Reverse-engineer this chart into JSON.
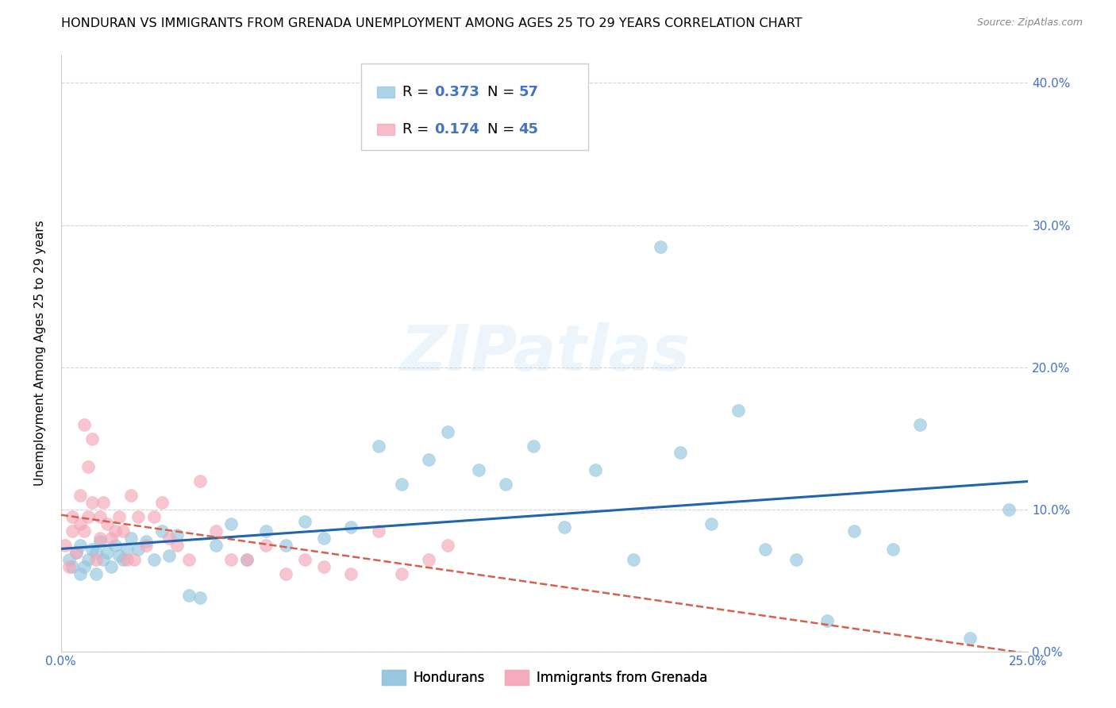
{
  "title": "HONDURAN VS IMMIGRANTS FROM GRENADA UNEMPLOYMENT AMONG AGES 25 TO 29 YEARS CORRELATION CHART",
  "source": "Source: ZipAtlas.com",
  "ylabel": "Unemployment Among Ages 25 to 29 years",
  "xlim": [
    0.0,
    0.25
  ],
  "ylim": [
    0.0,
    0.42
  ],
  "honduran_R": 0.373,
  "honduran_N": 57,
  "grenada_R": 0.174,
  "grenada_N": 45,
  "honduran_color": "#92c5de",
  "grenada_color": "#f4a6b8",
  "trendline_blue": "#2166ac",
  "trendline_pink": "#d6604d",
  "background_color": "#ffffff",
  "watermark_text": "ZIPatlas",
  "honduran_x": [
    0.002,
    0.003,
    0.004,
    0.005,
    0.005,
    0.006,
    0.007,
    0.008,
    0.009,
    0.009,
    0.01,
    0.011,
    0.012,
    0.013,
    0.014,
    0.015,
    0.016,
    0.017,
    0.018,
    0.02,
    0.022,
    0.024,
    0.026,
    0.028,
    0.03,
    0.033,
    0.036,
    0.04,
    0.044,
    0.048,
    0.053,
    0.058,
    0.063,
    0.068,
    0.075,
    0.082,
    0.088,
    0.095,
    0.1,
    0.108,
    0.115,
    0.122,
    0.13,
    0.138,
    0.148,
    0.155,
    0.16,
    0.168,
    0.175,
    0.182,
    0.19,
    0.198,
    0.205,
    0.215,
    0.222,
    0.235,
    0.245
  ],
  "honduran_y": [
    0.065,
    0.06,
    0.07,
    0.055,
    0.075,
    0.06,
    0.065,
    0.072,
    0.055,
    0.07,
    0.078,
    0.065,
    0.07,
    0.06,
    0.075,
    0.068,
    0.065,
    0.072,
    0.08,
    0.072,
    0.078,
    0.065,
    0.085,
    0.068,
    0.082,
    0.04,
    0.038,
    0.075,
    0.09,
    0.065,
    0.085,
    0.075,
    0.092,
    0.08,
    0.088,
    0.145,
    0.118,
    0.135,
    0.155,
    0.128,
    0.118,
    0.145,
    0.088,
    0.128,
    0.065,
    0.285,
    0.14,
    0.09,
    0.17,
    0.072,
    0.065,
    0.022,
    0.085,
    0.072,
    0.16,
    0.01,
    0.1
  ],
  "grenada_x": [
    0.001,
    0.002,
    0.003,
    0.003,
    0.004,
    0.005,
    0.005,
    0.006,
    0.006,
    0.007,
    0.007,
    0.008,
    0.008,
    0.009,
    0.01,
    0.01,
    0.011,
    0.012,
    0.013,
    0.014,
    0.015,
    0.016,
    0.017,
    0.018,
    0.019,
    0.02,
    0.022,
    0.024,
    0.026,
    0.028,
    0.03,
    0.033,
    0.036,
    0.04,
    0.044,
    0.048,
    0.053,
    0.058,
    0.063,
    0.068,
    0.075,
    0.082,
    0.088,
    0.095,
    0.1
  ],
  "grenada_y": [
    0.075,
    0.06,
    0.095,
    0.085,
    0.07,
    0.11,
    0.09,
    0.16,
    0.085,
    0.13,
    0.095,
    0.15,
    0.105,
    0.065,
    0.08,
    0.095,
    0.105,
    0.09,
    0.08,
    0.085,
    0.095,
    0.085,
    0.065,
    0.11,
    0.065,
    0.095,
    0.075,
    0.095,
    0.105,
    0.08,
    0.075,
    0.065,
    0.12,
    0.085,
    0.065,
    0.065,
    0.075,
    0.055,
    0.065,
    0.06,
    0.055,
    0.085,
    0.055,
    0.065,
    0.075
  ],
  "grid_color": "#d0d0d0",
  "title_fontsize": 11.5,
  "axis_label_fontsize": 11,
  "tick_fontsize": 11,
  "legend_fontsize": 13
}
